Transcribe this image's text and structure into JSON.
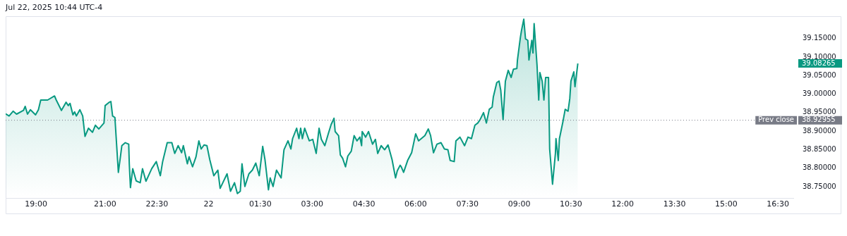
{
  "chart_data": {
    "type": "area",
    "annotations": [
      "Jul 22, 2025 10:44 UTC-4",
      "39.08265",
      "38.92955"
    ],
    "xlim": [
      "2025-07-21T18:07",
      "2025-07-22T16:58"
    ],
    "xticks": [
      {
        "value": "2025-07-21T19:00",
        "label": "19:00"
      },
      {
        "value": "2025-07-21T21:00",
        "label": "21:00"
      },
      {
        "value": "2025-07-21T22:30",
        "label": "22:30"
      },
      {
        "value": "2025-07-22T00:00",
        "label": "22"
      },
      {
        "value": "2025-07-22T01:30",
        "label": "01:30"
      },
      {
        "value": "2025-07-22T03:00",
        "label": "03:00"
      },
      {
        "value": "2025-07-22T04:30",
        "label": "04:30"
      },
      {
        "value": "2025-07-22T06:00",
        "label": "06:00"
      },
      {
        "value": "2025-07-22T07:30",
        "label": "07:30"
      },
      {
        "value": "2025-07-22T09:00",
        "label": "09:00"
      },
      {
        "value": "2025-07-22T10:30",
        "label": "10:30"
      },
      {
        "value": "2025-07-22T12:00",
        "label": "12:00"
      },
      {
        "value": "2025-07-22T13:30",
        "label": "13:30"
      },
      {
        "value": "2025-07-22T15:00",
        "label": "15:00"
      },
      {
        "value": "2025-07-22T16:30",
        "label": "16:30"
      }
    ],
    "ylim": [
      38.72,
      39.21
    ],
    "yticks": [
      {
        "value": 38.75,
        "label": "38.75000"
      },
      {
        "value": 38.8,
        "label": "38.80000"
      },
      {
        "value": 38.85,
        "label": "38.85000"
      },
      {
        "value": 38.9,
        "label": "38.90000"
      },
      {
        "value": 38.95,
        "label": "38.95000"
      },
      {
        "value": 39.0,
        "label": "39.00000"
      },
      {
        "value": 39.05,
        "label": "39.05000"
      },
      {
        "value": 39.1,
        "label": "39.10000"
      },
      {
        "value": 39.15,
        "label": "39.15000"
      }
    ],
    "marker": "none",
    "ref_lines": [
      {
        "axis": "y",
        "value": 38.92955,
        "label": "Prev close",
        "color": "#787b86",
        "line_style": "dotted"
      }
    ],
    "series": [
      {
        "color": "#089981",
        "x": [
          "2025-07-21T18:07",
          "2025-07-21T18:13",
          "2025-07-21T18:20",
          "2025-07-21T18:26",
          "2025-07-21T18:38",
          "2025-07-21T18:41",
          "2025-07-21T18:45",
          "2025-07-21T18:50",
          "2025-07-21T18:59",
          "2025-07-21T19:04",
          "2025-07-21T19:08",
          "2025-07-21T19:20",
          "2025-07-21T19:32",
          "2025-07-21T19:35",
          "2025-07-21T19:44",
          "2025-07-21T19:52",
          "2025-07-21T19:56",
          "2025-07-21T19:59",
          "2025-07-21T20:04",
          "2025-07-21T20:07",
          "2025-07-21T20:10",
          "2025-07-21T20:16",
          "2025-07-21T20:21",
          "2025-07-21T20:25",
          "2025-07-21T20:31",
          "2025-07-21T20:38",
          "2025-07-21T20:43",
          "2025-07-21T20:49",
          "2025-07-21T20:58",
          "2025-07-21T21:00",
          "2025-07-21T21:07",
          "2025-07-21T21:10",
          "2025-07-21T21:13",
          "2025-07-21T21:17",
          "2025-07-21T21:23",
          "2025-07-21T21:27",
          "2025-07-21T21:29",
          "2025-07-21T21:35",
          "2025-07-21T21:41",
          "2025-07-21T21:42",
          "2025-07-21T21:44",
          "2025-07-21T21:48",
          "2025-07-21T21:54",
          "2025-07-21T22:01",
          "2025-07-21T22:05",
          "2025-07-21T22:11",
          "2025-07-21T22:21",
          "2025-07-21T22:29",
          "2025-07-21T22:36",
          "2025-07-21T22:40",
          "2025-07-21T22:48",
          "2025-07-21T22:56",
          "2025-07-21T23:01",
          "2025-07-21T23:07",
          "2025-07-21T23:13",
          "2025-07-21T23:16",
          "2025-07-21T23:23",
          "2025-07-21T23:26",
          "2025-07-21T23:32",
          "2025-07-21T23:38",
          "2025-07-21T23:43",
          "2025-07-21T23:47",
          "2025-07-21T23:52",
          "2025-07-21T23:57",
          "2025-07-22T00:02",
          "2025-07-22T00:09",
          "2025-07-22T00:16",
          "2025-07-22T00:20",
          "2025-07-22T00:32",
          "2025-07-22T00:38",
          "2025-07-22T00:45",
          "2025-07-22T00:50",
          "2025-07-22T00:55",
          "2025-07-22T00:58",
          "2025-07-22T01:03",
          "2025-07-22T01:10",
          "2025-07-22T01:16",
          "2025-07-22T01:22",
          "2025-07-22T01:28",
          "2025-07-22T01:34",
          "2025-07-22T01:38",
          "2025-07-22T01:44",
          "2025-07-22T01:47",
          "2025-07-22T01:52",
          "2025-07-22T01:58",
          "2025-07-22T02:06",
          "2025-07-22T02:11",
          "2025-07-22T02:18",
          "2025-07-22T02:23",
          "2025-07-22T02:26",
          "2025-07-22T02:33",
          "2025-07-22T02:37",
          "2025-07-22T02:40",
          "2025-07-22T02:43",
          "2025-07-22T02:47",
          "2025-07-22T02:55",
          "2025-07-22T03:01",
          "2025-07-22T03:07",
          "2025-07-22T03:12",
          "2025-07-22T03:16",
          "2025-07-22T03:22",
          "2025-07-22T03:28",
          "2025-07-22T03:33",
          "2025-07-22T03:38",
          "2025-07-22T03:40",
          "2025-07-22T03:46",
          "2025-07-22T03:49",
          "2025-07-22T03:53",
          "2025-07-22T03:58",
          "2025-07-22T04:02",
          "2025-07-22T04:08",
          "2025-07-22T04:13",
          "2025-07-22T04:18",
          "2025-07-22T04:23",
          "2025-07-22T04:26",
          "2025-07-22T04:27",
          "2025-07-22T04:33",
          "2025-07-22T04:38",
          "2025-07-22T04:45",
          "2025-07-22T04:50",
          "2025-07-22T04:54",
          "2025-07-22T05:00",
          "2025-07-22T05:06",
          "2025-07-22T05:12",
          "2025-07-22T05:19",
          "2025-07-22T05:25",
          "2025-07-22T05:28",
          "2025-07-22T05:33",
          "2025-07-22T05:35",
          "2025-07-22T05:39",
          "2025-07-22T05:46",
          "2025-07-22T05:53",
          "2025-07-22T06:00",
          "2025-07-22T06:05",
          "2025-07-22T06:16",
          "2025-07-22T06:22",
          "2025-07-22T06:26",
          "2025-07-22T06:31",
          "2025-07-22T06:37",
          "2025-07-22T06:44",
          "2025-07-22T06:50",
          "2025-07-22T06:56",
          "2025-07-22T07:00",
          "2025-07-22T07:07",
          "2025-07-22T07:10",
          "2025-07-22T07:17",
          "2025-07-22T07:25",
          "2025-07-22T07:31",
          "2025-07-22T07:37",
          "2025-07-22T07:43",
          "2025-07-22T07:48",
          "2025-07-22T07:52",
          "2025-07-22T07:58",
          "2025-07-22T08:03",
          "2025-07-22T08:08",
          "2025-07-22T08:13",
          "2025-07-22T08:15",
          "2025-07-22T08:21",
          "2025-07-22T08:25",
          "2025-07-22T08:28",
          "2025-07-22T08:32",
          "2025-07-22T08:36",
          "2025-07-22T08:41",
          "2025-07-22T08:46",
          "2025-07-22T08:50",
          "2025-07-22T08:56",
          "2025-07-22T08:57",
          "2025-07-22T09:02",
          "2025-07-22T09:04",
          "2025-07-22T09:08",
          "2025-07-22T09:11",
          "2025-07-22T09:15",
          "2025-07-22T09:17",
          "2025-07-22T09:22",
          "2025-07-22T09:24",
          "2025-07-22T09:26",
          "2025-07-22T09:31",
          "2025-07-22T09:34",
          "2025-07-22T09:36",
          "2025-07-22T09:40",
          "2025-07-22T09:43",
          "2025-07-22T09:46",
          "2025-07-22T09:51",
          "2025-07-22T09:53",
          "2025-07-22T09:57",
          "2025-07-22T09:58",
          "2025-07-22T10:03",
          "2025-07-22T10:04",
          "2025-07-22T10:08",
          "2025-07-22T10:10",
          "2025-07-22T10:16",
          "2025-07-22T10:20",
          "2025-07-22T10:25",
          "2025-07-22T10:28",
          "2025-07-22T10:30",
          "2025-07-22T10:35",
          "2025-07-22T10:37",
          "2025-07-22T10:42"
        ],
        "values": [
          38.947,
          38.941,
          38.954,
          38.946,
          38.956,
          38.967,
          38.946,
          38.958,
          38.944,
          38.958,
          38.984,
          38.984,
          38.995,
          38.984,
          38.956,
          38.978,
          38.969,
          38.975,
          38.944,
          38.952,
          38.941,
          38.958,
          38.941,
          38.886,
          38.908,
          38.897,
          38.916,
          38.906,
          38.922,
          38.969,
          38.978,
          38.98,
          38.941,
          38.937,
          38.789,
          38.836,
          38.861,
          38.869,
          38.865,
          38.812,
          38.748,
          38.799,
          38.766,
          38.761,
          38.799,
          38.765,
          38.799,
          38.818,
          38.78,
          38.818,
          38.869,
          38.869,
          38.84,
          38.861,
          38.842,
          38.861,
          38.812,
          38.831,
          38.804,
          38.831,
          38.874,
          38.852,
          38.863,
          38.861,
          38.823,
          38.78,
          38.795,
          38.746,
          38.785,
          38.738,
          38.761,
          38.732,
          38.738,
          38.812,
          38.751,
          38.785,
          38.795,
          38.814,
          38.78,
          38.859,
          38.823,
          38.742,
          38.774,
          38.751,
          38.795,
          38.774,
          38.85,
          38.874,
          38.852,
          38.88,
          38.908,
          38.88,
          38.908,
          38.88,
          38.908,
          38.874,
          38.878,
          38.84,
          38.908,
          38.878,
          38.861,
          38.893,
          38.918,
          38.935,
          38.899,
          38.888,
          38.836,
          38.827,
          38.804,
          38.833,
          38.846,
          38.888,
          38.874,
          38.884,
          38.861,
          38.899,
          38.884,
          38.899,
          38.865,
          38.878,
          38.84,
          38.861,
          38.85,
          38.863,
          38.823,
          38.774,
          38.793,
          38.808,
          38.804,
          38.789,
          38.821,
          38.842,
          38.893,
          38.874,
          38.888,
          38.906,
          38.888,
          38.842,
          38.865,
          38.869,
          38.852,
          38.85,
          38.821,
          38.818,
          38.874,
          38.884,
          38.861,
          38.884,
          38.88,
          38.916,
          38.922,
          38.931,
          38.95,
          38.922,
          38.959,
          38.965,
          38.992,
          39.031,
          39.035,
          39.01,
          38.931,
          39.035,
          39.064,
          39.045,
          39.067,
          39.069,
          39.092,
          39.152,
          39.171,
          39.202,
          39.149,
          39.145,
          39.092,
          39.145,
          39.111,
          39.19,
          39.079,
          38.984,
          39.058,
          39.035,
          38.984,
          39.045,
          39.045,
          38.852,
          38.776,
          38.757,
          38.84,
          38.88,
          38.821,
          38.88,
          38.925,
          38.959,
          38.954,
          38.988,
          39.035,
          39.06,
          39.02,
          39.08265
        ]
      }
    ]
  }
}
